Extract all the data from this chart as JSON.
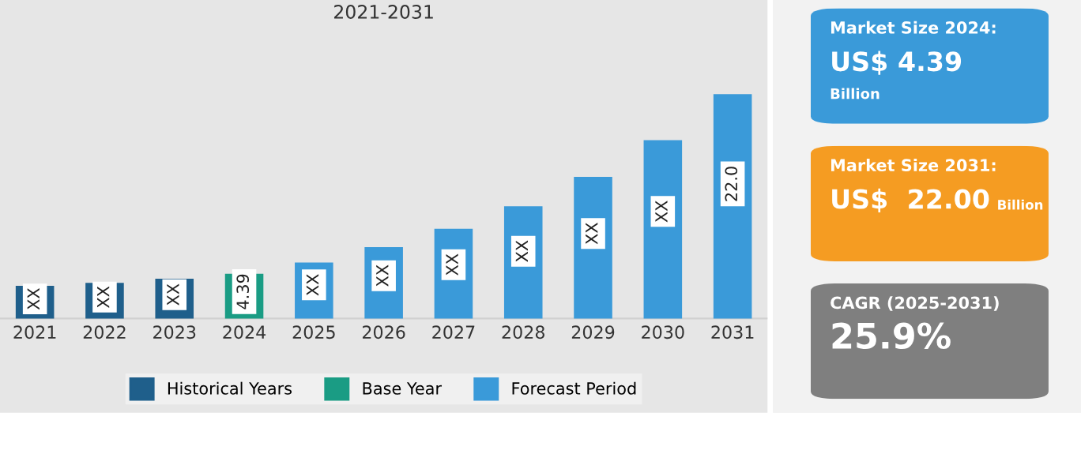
{
  "chart_data": [
    {
      "type": "bar",
      "title": "2021-2031",
      "legend": "bottom",
      "categories": [
        "2021",
        "2022",
        "2023",
        "2024",
        "2025",
        "2026",
        "2027",
        "2028",
        "2029",
        "2030",
        "2031"
      ],
      "series": [
        {
          "name": "Historical Years",
          "color": "#1f5f8b",
          "values": [
            3.2,
            3.5,
            3.9,
            null,
            null,
            null,
            null,
            null,
            null,
            null,
            null
          ],
          "value_labels": [
            "XX",
            "XX",
            "XX",
            null,
            null,
            null,
            null,
            null,
            null,
            null,
            null
          ]
        },
        {
          "name": "Base Year",
          "color": "#1a9c84",
          "values": [
            null,
            null,
            null,
            4.39,
            null,
            null,
            null,
            null,
            null,
            null,
            null
          ],
          "value_labels": [
            null,
            null,
            null,
            "4.39",
            null,
            null,
            null,
            null,
            null,
            null,
            null
          ]
        },
        {
          "name": "Forecast Period",
          "color": "#3a9ad9",
          "values": [
            null,
            null,
            null,
            null,
            5.5,
            7.0,
            8.8,
            11.0,
            13.9,
            17.5,
            22.0
          ],
          "value_labels": [
            null,
            null,
            null,
            null,
            "XX",
            "XX",
            "XX",
            "XX",
            "XX",
            "XX",
            "22.0"
          ]
        }
      ]
    },
    {
      "type": "other",
      "colors": [
        "#3a9ad9"
      ],
      "annotations": [
        "Market Size 2024:",
        "US$ 4.39",
        "Billion"
      ]
    },
    {
      "type": "other",
      "colors": [
        "#f59c22"
      ],
      "annotations": [
        "Market Size 2031:",
        "US$  22.00",
        "Billion"
      ]
    },
    {
      "type": "other",
      "colors": [
        "#7f7f7f"
      ],
      "annotations": [
        "CAGR (2025-2031)",
        "25.9%"
      ]
    }
  ]
}
